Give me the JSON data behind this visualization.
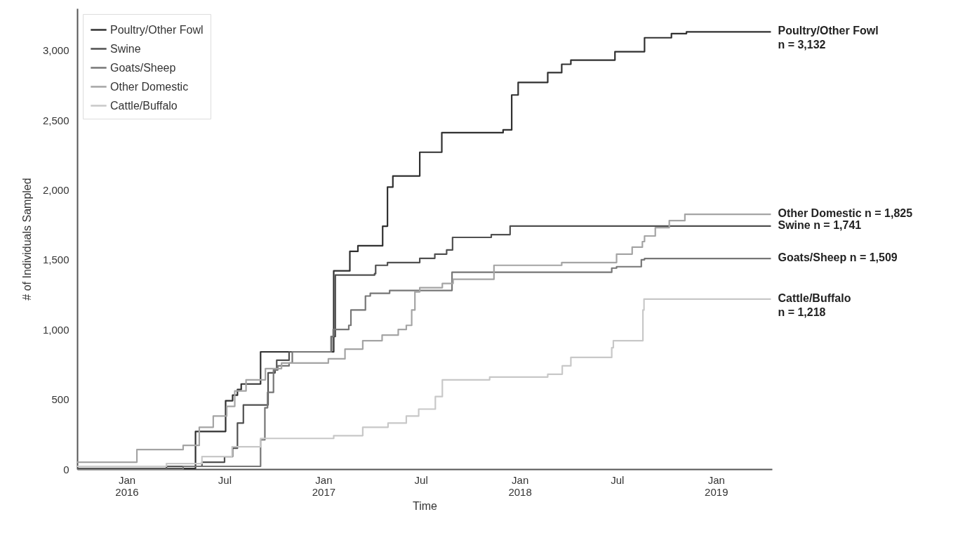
{
  "chart_data": {
    "type": "step",
    "xlabel": "Time",
    "ylabel": "# of Individuals Sampled",
    "xlim": [
      "2015-10-01",
      "2019-04-15"
    ],
    "ylim": [
      0,
      3300
    ],
    "xticks": [
      {
        "value": "2016-01-01",
        "label": "Jan\n2016"
      },
      {
        "value": "2016-07-01",
        "label": "Jul"
      },
      {
        "value": "2017-01-01",
        "label": "Jan\n2017"
      },
      {
        "value": "2017-07-01",
        "label": "Jul"
      },
      {
        "value": "2018-01-01",
        "label": "Jan\n2018"
      },
      {
        "value": "2018-07-01",
        "label": "Jul"
      },
      {
        "value": "2019-01-01",
        "label": "Jan\n2019"
      }
    ],
    "yticks": [
      {
        "value": 0,
        "label": "0"
      },
      {
        "value": 500,
        "label": "500"
      },
      {
        "value": 1000,
        "label": "1,000"
      },
      {
        "value": 1500,
        "label": "1,500"
      },
      {
        "value": 2000,
        "label": "2,000"
      },
      {
        "value": 2500,
        "label": "2,500"
      },
      {
        "value": 3000,
        "label": "3,000"
      }
    ],
    "grid": false,
    "legend": "top left",
    "line_style": "solid",
    "series": [
      {
        "name": "Poultry/Other Fowl",
        "color": "#303030",
        "x": [
          "2015-10-01",
          "2016-05-08",
          "2016-07-03",
          "2016-07-16",
          "2016-07-25",
          "2016-08-01",
          "2016-09-06",
          "2017-01-20",
          "2017-02-19",
          "2017-03-06",
          "2017-04-21",
          "2017-04-30",
          "2017-05-10",
          "2017-06-29",
          "2017-08-09",
          "2017-12-01",
          "2017-12-17",
          "2017-12-29",
          "2018-02-22",
          "2018-03-20",
          "2018-04-06",
          "2018-06-27",
          "2018-08-21",
          "2018-10-10",
          "2018-11-07",
          "2019-04-13"
        ],
        "values": [
          5,
          270,
          490,
          530,
          570,
          610,
          840,
          1420,
          1560,
          1600,
          1740,
          2020,
          2100,
          2270,
          2410,
          2430,
          2680,
          2770,
          2840,
          2900,
          2930,
          2990,
          3090,
          3120,
          3132,
          3132
        ]
      },
      {
        "name": "Swine",
        "color": "#505050",
        "x": [
          "2015-10-01",
          "2016-03-15",
          "2016-05-20",
          "2016-07-01",
          "2016-07-16",
          "2016-07-25",
          "2016-08-05",
          "2016-09-20",
          "2016-10-03",
          "2016-10-06",
          "2016-10-29",
          "2017-01-16",
          "2017-01-23",
          "2017-04-06",
          "2017-04-08",
          "2017-04-30",
          "2017-06-29",
          "2017-07-27",
          "2017-08-18",
          "2017-08-29",
          "2017-11-09",
          "2017-12-14",
          "2019-04-13"
        ],
        "values": [
          0,
          20,
          50,
          90,
          150,
          330,
          460,
          690,
          710,
          780,
          840,
          950,
          1390,
          1400,
          1460,
          1480,
          1510,
          1540,
          1570,
          1660,
          1680,
          1741,
          1741
        ]
      },
      {
        "name": "Goats/Sheep",
        "color": "#767676",
        "x": [
          "2015-10-01",
          "2016-04-15",
          "2016-09-06",
          "2016-09-14",
          "2016-09-19",
          "2016-09-30",
          "2016-10-08",
          "2016-10-29",
          "2016-11-04",
          "2017-01-15",
          "2017-01-19",
          "2017-02-17",
          "2017-02-21",
          "2017-03-20",
          "2017-03-29",
          "2017-05-04",
          "2017-08-28",
          "2018-06-21",
          "2018-06-30",
          "2018-08-15",
          "2018-08-21",
          "2019-04-13"
        ],
        "values": [
          0,
          20,
          210,
          440,
          550,
          710,
          740,
          760,
          840,
          950,
          1000,
          1030,
          1140,
          1240,
          1260,
          1280,
          1410,
          1440,
          1450,
          1500,
          1509,
          1509
        ]
      },
      {
        "name": "Other Domestic",
        "color": "#a4a4a4",
        "x": [
          "2015-10-01",
          "2016-01-20",
          "2016-04-15",
          "2016-05-15",
          "2016-06-10",
          "2016-07-05",
          "2016-07-20",
          "2016-08-10",
          "2016-09-15",
          "2016-10-15",
          "2017-01-10",
          "2017-02-10",
          "2017-03-15",
          "2017-04-20",
          "2017-05-20",
          "2017-06-04",
          "2017-06-14",
          "2017-06-20",
          "2017-06-29",
          "2017-08-10",
          "2017-08-30",
          "2017-11-14",
          "2018-03-20",
          "2018-06-30",
          "2018-07-29",
          "2018-08-17",
          "2018-08-21",
          "2018-09-10",
          "2018-10-06",
          "2018-11-04",
          "2019-04-13"
        ],
        "values": [
          50,
          140,
          170,
          300,
          380,
          450,
          560,
          640,
          720,
          760,
          790,
          860,
          920,
          960,
          1000,
          1030,
          1140,
          1270,
          1300,
          1330,
          1360,
          1460,
          1480,
          1540,
          1590,
          1630,
          1670,
          1730,
          1780,
          1825,
          1825
        ]
      },
      {
        "name": "Cattle/Buffalo",
        "color": "#c8c8c8",
        "x": [
          "2015-10-01",
          "2016-03-15",
          "2016-05-20",
          "2016-07-15",
          "2016-09-06",
          "2017-01-20",
          "2017-03-15",
          "2017-05-01",
          "2017-06-04",
          "2017-06-27",
          "2017-07-28",
          "2017-08-10",
          "2017-11-06",
          "2018-02-22",
          "2018-03-21",
          "2018-04-06",
          "2018-06-21",
          "2018-06-24",
          "2018-08-18",
          "2018-08-20",
          "2019-04-13"
        ],
        "values": [
          20,
          40,
          90,
          160,
          220,
          240,
          300,
          330,
          380,
          430,
          520,
          640,
          660,
          680,
          740,
          800,
          870,
          920,
          1140,
          1218,
          1218
        ]
      }
    ],
    "annotations": [
      {
        "text": "Poultry/Other Fowl\nn = 3,132",
        "x": "2019-04-13",
        "y": 3132
      },
      {
        "text": "Other Domestic n = 1,825",
        "x": "2019-04-13",
        "y": 1825
      },
      {
        "text": "Swine n = 1,741",
        "x": "2019-04-13",
        "y": 1741
      },
      {
        "text": "Goats/Sheep n = 1,509",
        "x": "2019-04-13",
        "y": 1509
      },
      {
        "text": "Cattle/Buffalo\nn = 1,218",
        "x": "2019-04-13",
        "y": 1218
      }
    ]
  }
}
